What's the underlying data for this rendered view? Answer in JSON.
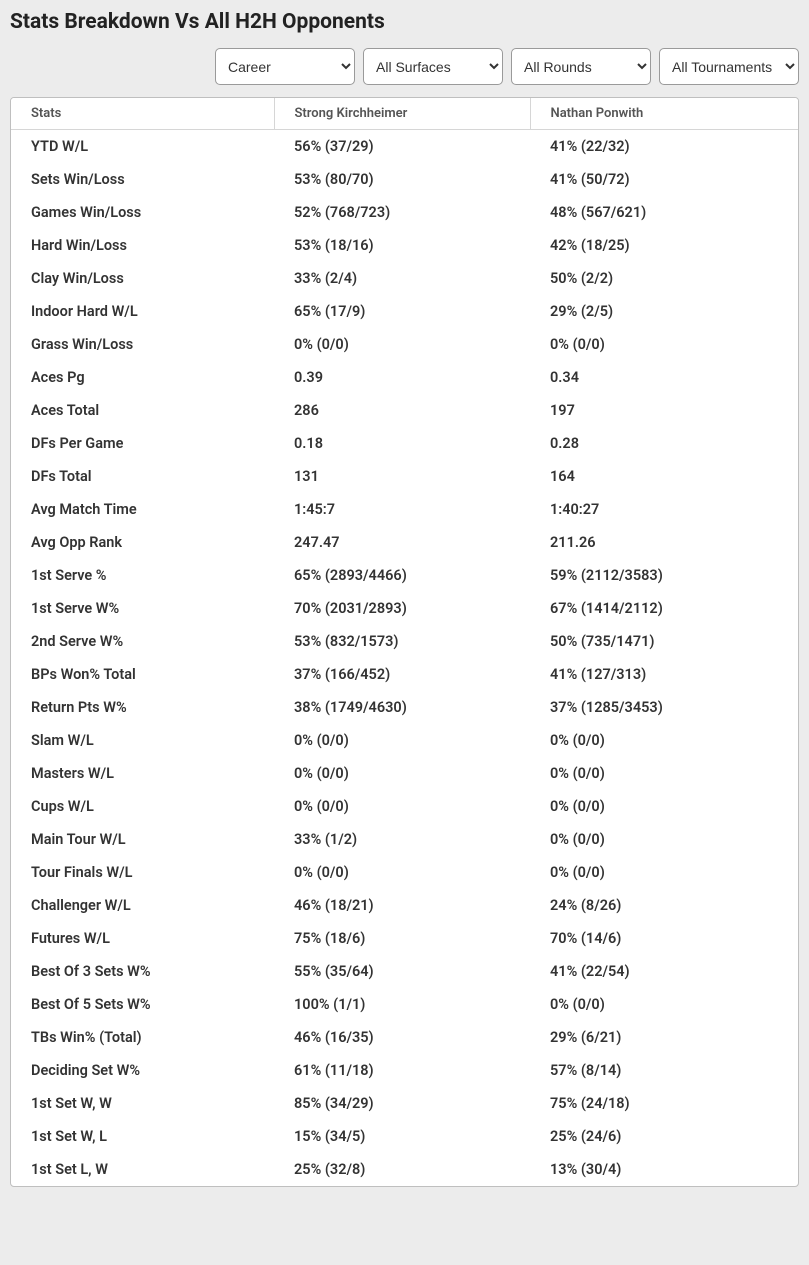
{
  "title": "Stats Breakdown Vs All H2H Opponents",
  "filters": {
    "career": "Career",
    "surfaces": "All Surfaces",
    "rounds": "All Rounds",
    "tournaments": "All Tournaments"
  },
  "columns": [
    "Stats",
    "Strong Kirchheimer",
    "Nathan Ponwith"
  ],
  "rows": [
    [
      "YTD W/L",
      "56% (37/29)",
      "41% (22/32)"
    ],
    [
      "Sets Win/Loss",
      "53% (80/70)",
      "41% (50/72)"
    ],
    [
      "Games Win/Loss",
      "52% (768/723)",
      "48% (567/621)"
    ],
    [
      "Hard Win/Loss",
      "53% (18/16)",
      "42% (18/25)"
    ],
    [
      "Clay Win/Loss",
      "33% (2/4)",
      "50% (2/2)"
    ],
    [
      "Indoor Hard W/L",
      "65% (17/9)",
      "29% (2/5)"
    ],
    [
      "Grass Win/Loss",
      "0% (0/0)",
      "0% (0/0)"
    ],
    [
      "Aces Pg",
      "0.39",
      "0.34"
    ],
    [
      "Aces Total",
      "286",
      "197"
    ],
    [
      "DFs Per Game",
      "0.18",
      "0.28"
    ],
    [
      "DFs Total",
      "131",
      "164"
    ],
    [
      "Avg Match Time",
      "1:45:7",
      "1:40:27"
    ],
    [
      "Avg Opp Rank",
      "247.47",
      "211.26"
    ],
    [
      "1st Serve %",
      "65% (2893/4466)",
      "59% (2112/3583)"
    ],
    [
      "1st Serve W%",
      "70% (2031/2893)",
      "67% (1414/2112)"
    ],
    [
      "2nd Serve W%",
      "53% (832/1573)",
      "50% (735/1471)"
    ],
    [
      "BPs Won% Total",
      "37% (166/452)",
      "41% (127/313)"
    ],
    [
      "Return Pts W%",
      "38% (1749/4630)",
      "37% (1285/3453)"
    ],
    [
      "Slam W/L",
      "0% (0/0)",
      "0% (0/0)"
    ],
    [
      "Masters W/L",
      "0% (0/0)",
      "0% (0/0)"
    ],
    [
      "Cups W/L",
      "0% (0/0)",
      "0% (0/0)"
    ],
    [
      "Main Tour W/L",
      "33% (1/2)",
      "0% (0/0)"
    ],
    [
      "Tour Finals W/L",
      "0% (0/0)",
      "0% (0/0)"
    ],
    [
      "Challenger W/L",
      "46% (18/21)",
      "24% (8/26)"
    ],
    [
      "Futures W/L",
      "75% (18/6)",
      "70% (14/6)"
    ],
    [
      "Best Of 3 Sets W%",
      "55% (35/64)",
      "41% (22/54)"
    ],
    [
      "Best Of 5 Sets W%",
      "100% (1/1)",
      "0% (0/0)"
    ],
    [
      "TBs Win% (Total)",
      "46% (16/35)",
      "29% (6/21)"
    ],
    [
      "Deciding Set W%",
      "61% (11/18)",
      "57% (8/14)"
    ],
    [
      "1st Set W, W",
      "85% (34/29)",
      "75% (24/18)"
    ],
    [
      "1st Set W, L",
      "15% (34/5)",
      "25% (24/6)"
    ],
    [
      "1st Set L, W",
      "25% (32/8)",
      "13% (30/4)"
    ]
  ]
}
